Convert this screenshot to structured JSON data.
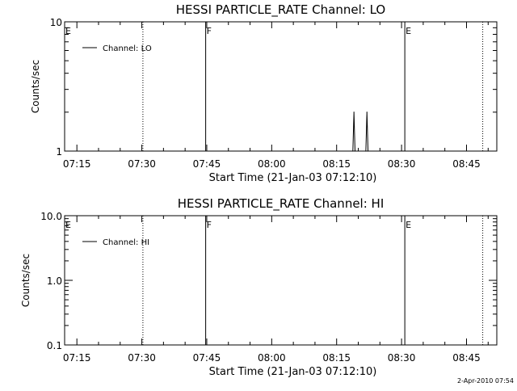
{
  "chart_data": [
    {
      "type": "line",
      "title": "HESSI PARTICLE_RATE Channel: LO",
      "xlabel": "Start Time (21-Jan-03 07:12:10)",
      "ylabel": "Counts/sec",
      "yscale": "log",
      "ylim": [
        1,
        10
      ],
      "yticks": [
        1,
        10
      ],
      "ytick_labels": [
        "1",
        "10"
      ],
      "xlim": [
        "07:12:10",
        "08:52:00"
      ],
      "xticks": [
        "07:15",
        "07:30",
        "07:45",
        "08:00",
        "08:15",
        "08:30",
        "08:45"
      ],
      "legend": {
        "label": "Channel: LO",
        "placement": "top-left"
      },
      "series": [
        {
          "name": "Channel: LO",
          "points": [
            {
              "x": "08:18:45",
              "y": 1
            },
            {
              "x": "08:19:00",
              "y": 2
            },
            {
              "x": "08:19:15",
              "y": 1
            },
            {
              "x": "08:21:45",
              "y": 1
            },
            {
              "x": "08:22:00",
              "y": 2
            },
            {
              "x": "08:22:15",
              "y": 1
            }
          ]
        }
      ],
      "markers": [
        {
          "x": "07:12:10",
          "style": "dotted",
          "label": "E"
        },
        {
          "x": "07:30:15",
          "style": "dotted",
          "label": ""
        },
        {
          "x": "07:44:45",
          "style": "solid",
          "label": "F"
        },
        {
          "x": "08:30:45",
          "style": "solid",
          "label": "E"
        },
        {
          "x": "08:48:45",
          "style": "dotted",
          "label": ""
        }
      ]
    },
    {
      "type": "line",
      "title": "HESSI PARTICLE_RATE Channel: HI",
      "xlabel": "Start Time (21-Jan-03 07:12:10)",
      "ylabel": "Counts/sec",
      "yscale": "log",
      "ylim": [
        0.1,
        10
      ],
      "yticks": [
        0.1,
        1,
        10
      ],
      "ytick_labels": [
        "0.1",
        "1.0",
        "10.0"
      ],
      "xlim": [
        "07:12:10",
        "08:52:00"
      ],
      "xticks": [
        "07:15",
        "07:30",
        "07:45",
        "08:00",
        "08:15",
        "08:30",
        "08:45"
      ],
      "legend": {
        "label": "Channel: HI",
        "placement": "top-left"
      },
      "series": [
        {
          "name": "Channel: HI",
          "points": []
        }
      ],
      "markers": [
        {
          "x": "07:12:10",
          "style": "dotted",
          "label": "E"
        },
        {
          "x": "07:30:15",
          "style": "dotted",
          "label": ""
        },
        {
          "x": "07:44:45",
          "style": "solid",
          "label": "F"
        },
        {
          "x": "08:30:45",
          "style": "solid",
          "label": "E"
        },
        {
          "x": "08:48:45",
          "style": "dotted",
          "label": ""
        }
      ]
    }
  ],
  "footer": {
    "timestamp": "2-Apr-2010 07:54"
  }
}
